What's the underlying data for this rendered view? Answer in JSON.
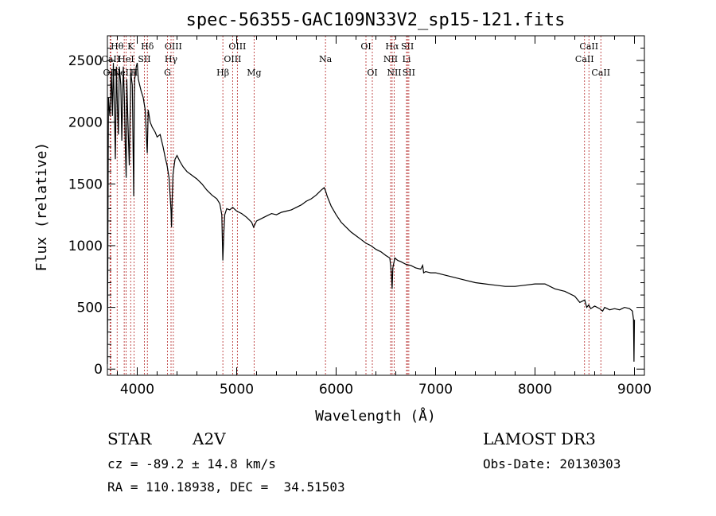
{
  "chart_data": {
    "type": "line",
    "title": "spec-56355-GAC109N33V2_sp15-121.fits",
    "xlabel": "Wavelength (Å)",
    "ylabel": "Flux (relative)",
    "xlim": [
      3700,
      9100
    ],
    "ylim": [
      -50,
      2700
    ],
    "xticks": [
      4000,
      5000,
      6000,
      7000,
      8000,
      9000
    ],
    "yticks": [
      0,
      500,
      1000,
      1500,
      2000,
      2500
    ],
    "grid": false,
    "series": [
      {
        "name": "flux",
        "x": [
          3700,
          3710,
          3725,
          3740,
          3750,
          3760,
          3770,
          3780,
          3790,
          3800,
          3810,
          3820,
          3835,
          3845,
          3860,
          3870,
          3880,
          3889,
          3895,
          3905,
          3920,
          3935,
          3950,
          3965,
          3970,
          3975,
          3990,
          4000,
          4010,
          4025,
          4040,
          4060,
          4080,
          4101,
          4110,
          4130,
          4150,
          4180,
          4200,
          4230,
          4260,
          4280,
          4300,
          4320,
          4340,
          4345,
          4350,
          4360,
          4380,
          4400,
          4430,
          4460,
          4500,
          4550,
          4600,
          4650,
          4700,
          4750,
          4800,
          4830,
          4850,
          4861,
          4870,
          4880,
          4900,
          4930,
          4960,
          5000,
          5050,
          5100,
          5150,
          5170,
          5200,
          5250,
          5300,
          5350,
          5400,
          5450,
          5500,
          5550,
          5600,
          5650,
          5700,
          5750,
          5800,
          5850,
          5880,
          5895,
          5910,
          5950,
          6000,
          6050,
          6100,
          6150,
          6200,
          6250,
          6300,
          6350,
          6400,
          6450,
          6500,
          6540,
          6555,
          6563,
          6570,
          6590,
          6620,
          6650,
          6700,
          6750,
          6800,
          6850,
          6870,
          6880,
          6900,
          6950,
          7000,
          7100,
          7200,
          7300,
          7400,
          7500,
          7600,
          7700,
          7800,
          7900,
          8000,
          8100,
          8200,
          8300,
          8400,
          8450,
          8500,
          8520,
          8540,
          8560,
          8600,
          8650,
          8680,
          8700,
          8750,
          8800,
          8850,
          8900,
          8950,
          8980,
          8990,
          8995,
          9000
        ],
        "values": [
          40,
          2200,
          2050,
          2400,
          2050,
          2480,
          2100,
          1700,
          2450,
          2150,
          1900,
          2450,
          2300,
          1850,
          2450,
          2200,
          1800,
          1550,
          2350,
          2050,
          1650,
          2400,
          2300,
          1400,
          2200,
          2350,
          2450,
          2480,
          2350,
          2300,
          2250,
          2200,
          2100,
          1750,
          2100,
          2000,
          1960,
          1920,
          1880,
          1900,
          1800,
          1720,
          1650,
          1550,
          1280,
          1150,
          1350,
          1580,
          1700,
          1730,
          1680,
          1640,
          1600,
          1570,
          1540,
          1500,
          1450,
          1410,
          1380,
          1340,
          1250,
          880,
          1100,
          1250,
          1300,
          1290,
          1310,
          1280,
          1260,
          1230,
          1190,
          1150,
          1200,
          1220,
          1240,
          1260,
          1250,
          1270,
          1280,
          1290,
          1310,
          1330,
          1360,
          1380,
          1410,
          1450,
          1470,
          1440,
          1400,
          1320,
          1250,
          1190,
          1150,
          1110,
          1080,
          1050,
          1020,
          1000,
          970,
          950,
          920,
          900,
          780,
          650,
          820,
          900,
          880,
          870,
          850,
          840,
          820,
          810,
          840,
          780,
          790,
          780,
          780,
          760,
          740,
          720,
          700,
          690,
          680,
          670,
          670,
          680,
          690,
          690,
          650,
          630,
          590,
          540,
          560,
          500,
          520,
          490,
          510,
          490,
          470,
          500,
          480,
          490,
          480,
          500,
          490,
          470,
          400,
          60,
          400
        ]
      }
    ],
    "lines": [
      {
        "name": "OII",
        "x": 3727,
        "row": 3
      },
      {
        "name": "Hθ",
        "x": 3798,
        "row": 1
      },
      {
        "name": "CaII",
        "x": 3734,
        "row": 2
      },
      {
        "name": "HeI",
        "x": 3888,
        "row": 2
      },
      {
        "name": "NeIII",
        "x": 3869,
        "row": 3
      },
      {
        "name": "K",
        "x": 3934,
        "row": 1
      },
      {
        "name": "H",
        "x": 3968,
        "row": 3
      },
      {
        "name": "SII",
        "x": 4072,
        "row": 2
      },
      {
        "name": "Hδ",
        "x": 4102,
        "row": 1
      },
      {
        "name": "OIII",
        "x": 4363,
        "row": 1
      },
      {
        "name": "Hγ",
        "x": 4340,
        "row": 2
      },
      {
        "name": "G",
        "x": 4304,
        "row": 3
      },
      {
        "name": "Hβ",
        "x": 4861,
        "row": 3
      },
      {
        "name": "OIII",
        "x": 5007,
        "row": 1
      },
      {
        "name": "OIII",
        "x": 4959,
        "row": 2
      },
      {
        "name": "Mg",
        "x": 5175,
        "row": 3
      },
      {
        "name": "Na",
        "x": 5893,
        "row": 2
      },
      {
        "name": "OI",
        "x": 6300,
        "row": 1
      },
      {
        "name": "OI",
        "x": 6364,
        "row": 3
      },
      {
        "name": "Hα",
        "x": 6563,
        "row": 1
      },
      {
        "name": "NII",
        "x": 6548,
        "row": 2
      },
      {
        "name": "NII",
        "x": 6584,
        "row": 3
      },
      {
        "name": "SII",
        "x": 6717,
        "row": 1
      },
      {
        "name": "Li",
        "x": 6708,
        "row": 2
      },
      {
        "name": "SII",
        "x": 6731,
        "row": 3
      },
      {
        "name": "CaII",
        "x": 8542,
        "row": 1
      },
      {
        "name": "CaII",
        "x": 8498,
        "row": 2
      },
      {
        "name": "CaII",
        "x": 8662,
        "row": 3
      }
    ]
  },
  "info": {
    "object_type": "STAR",
    "spectral_class": "A2V",
    "survey": "LAMOST DR3",
    "cz": "cz = -89.2 ± 14.8 km/s",
    "obs_date": "Obs-Date: 20130303",
    "coords": "RA = 110.18938, DEC =  34.51503"
  },
  "colors": {
    "spectrum": "#000000",
    "line_markers": "#b22222"
  }
}
